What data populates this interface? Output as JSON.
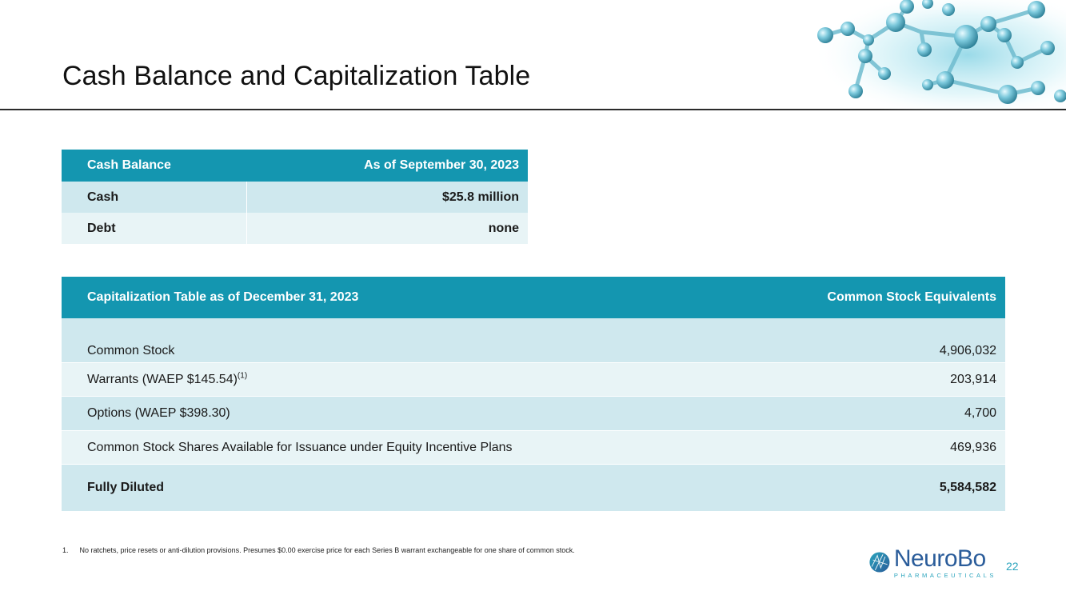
{
  "title": "Cash Balance and Capitalization Table",
  "cash_table": {
    "header": [
      "Cash Balance",
      "As of September 30, 2023"
    ],
    "rows": [
      {
        "label": "Cash",
        "value": "$25.8 million"
      },
      {
        "label": "Debt",
        "value": "none"
      }
    ]
  },
  "cap_table": {
    "header": [
      "Capitalization Table as of December 31, 2023",
      "Common Stock Equivalents"
    ],
    "rows": [
      {
        "label": "Common Stock",
        "sup": "",
        "value": "4,906,032"
      },
      {
        "label": "Warrants (WAEP $145.54)",
        "sup": "(1)",
        "value": "203,914"
      },
      {
        "label": "Options (WAEP $398.30)",
        "sup": "",
        "value": "4,700"
      },
      {
        "label": "Common Stock Shares Available for Issuance under Equity Incentive Plans",
        "sup": "",
        "value": "469,936"
      }
    ],
    "total": {
      "label": "Fully Diluted",
      "value": "5,584,582"
    }
  },
  "footnote": {
    "number": "1.",
    "text": "No ratchets, price resets or anti-dilution provisions.  Presumes $0.00 exercise price for each Series B warrant exchangeable for one share of common stock."
  },
  "logo": {
    "name": "NeuroBo",
    "subtitle": "PHARMACEUTICALS",
    "icon": "neurobo-logo-icon"
  },
  "page_number": "22",
  "colors": {
    "header_teal": "#1496b0",
    "row_dark": "#cfe8ee",
    "row_light": "#e8f4f6",
    "logo_blue": "#2a5c9a",
    "accent": "#2aa4bd"
  }
}
